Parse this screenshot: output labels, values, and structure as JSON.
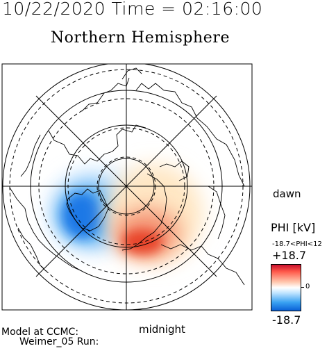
{
  "header": {
    "timestamp": "10/22/2020 Time = 02:16:00"
  },
  "map": {
    "title": "Northern Hemisphere",
    "label_dawn": "dawn",
    "label_midnight": "midnight",
    "colors": {
      "positive": "#e8452c",
      "negative": "#1f88ee",
      "zero": "#ffffff"
    }
  },
  "colorbar": {
    "title": "PHI [kV]",
    "range_text": "-18.7<PHI<12",
    "max_label": "+18.7",
    "zero_label": "0",
    "min_label": "-18.7"
  },
  "footer": {
    "model_line": "Model at CCMC:",
    "run_line": "Weimer_05 Run:"
  }
}
